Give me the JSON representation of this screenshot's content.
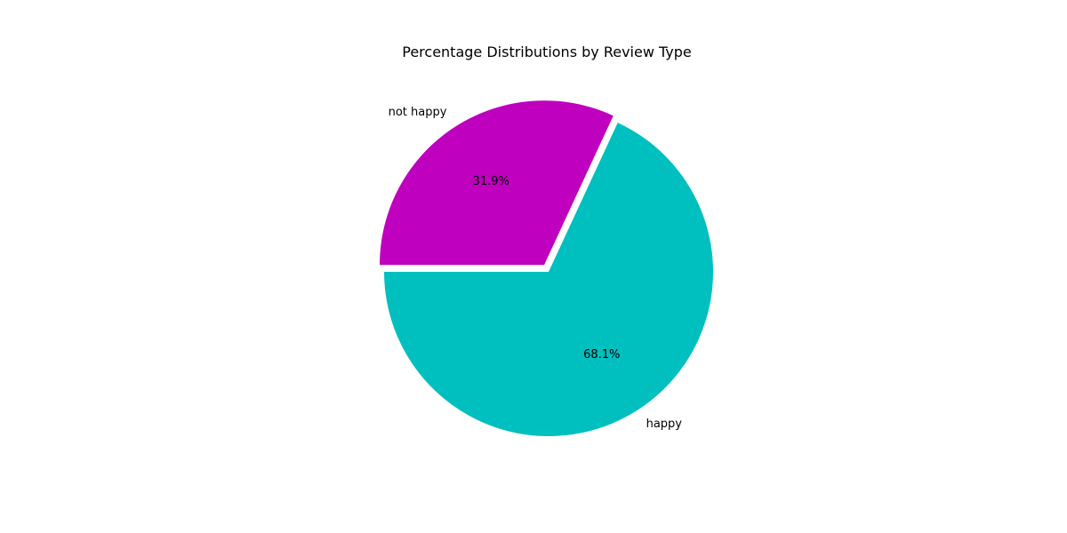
{
  "chart_data": {
    "type": "pie",
    "title": "Percentage Distributions by Review Type",
    "slices": [
      {
        "label": "happy",
        "value": 68.1,
        "pct_label": "68.1%",
        "color": "#00BFBF",
        "exploded": false
      },
      {
        "label": "not happy",
        "value": 31.9,
        "pct_label": "31.9%",
        "color": "#BF00BF",
        "exploded": true
      }
    ],
    "start_angle_deg": 180,
    "direction": "counterclockwise"
  }
}
